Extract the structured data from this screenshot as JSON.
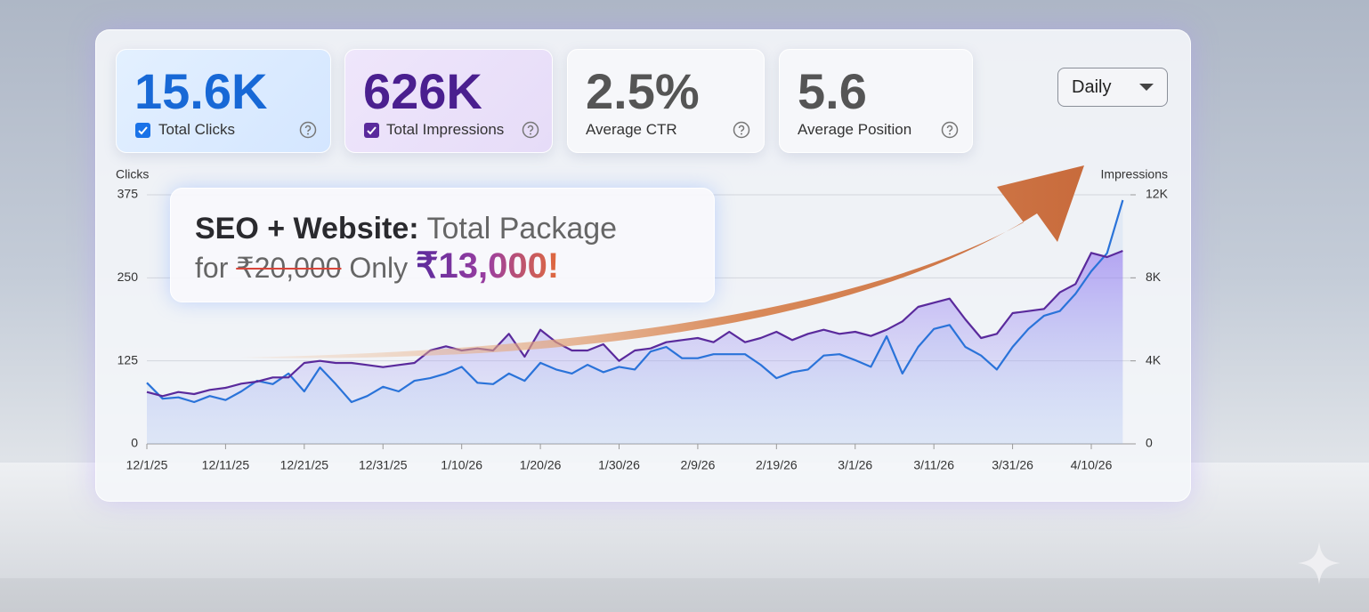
{
  "cards": [
    {
      "value": "15.6K",
      "label": "Total Clicks"
    },
    {
      "value": "626K",
      "label": "Total Impressions"
    },
    {
      "value": "2.5%",
      "label": "Average CTR"
    },
    {
      "value": "5.6",
      "label": "Average Position"
    }
  ],
  "dropdown": "Daily",
  "promo": {
    "headline": "SEO + Website:",
    "headline_rest": "Total Package",
    "prefix": "for",
    "old_price": "₹20,000",
    "middle": "Only",
    "new_price": "₹13,000!"
  },
  "chart_data": {
    "type": "line",
    "categories": [
      "12/1/25",
      null,
      null,
      null,
      null,
      "12/11/25",
      null,
      null,
      null,
      null,
      "12/21/25",
      null,
      null,
      null,
      null,
      "12/31/25",
      null,
      null,
      null,
      null,
      "1/10/26",
      null,
      null,
      null,
      null,
      "1/20/26",
      null,
      null,
      null,
      null,
      "1/30/26",
      null,
      null,
      null,
      null,
      "2/9/26",
      null,
      null,
      null,
      null,
      "2/19/26",
      null,
      null,
      null,
      null,
      "3/1/26",
      null,
      null,
      null,
      null,
      "3/11/26",
      null,
      null,
      null,
      null,
      "3/31/26",
      null,
      null,
      null,
      null,
      "4/10/26",
      null,
      null
    ],
    "y_label": "Clicks",
    "y2_label": "Impressions",
    "ylim": [
      0,
      375
    ],
    "yticks": [
      0,
      125,
      250,
      375
    ],
    "y2lim": [
      0,
      12000
    ],
    "y2ticks": [
      0,
      {
        "value": 4000,
        "label": "4K"
      },
      {
        "value": 8000,
        "label": "8K"
      },
      {
        "value": 12000,
        "label": "12K"
      }
    ],
    "grid": true,
    "series": [
      {
        "name": "Total Clicks",
        "color": "#2a73d9",
        "values": [
          92,
          68,
          70,
          63,
          72,
          66,
          79,
          95,
          90,
          106,
          79,
          115,
          90,
          63,
          72,
          86,
          79,
          95,
          99,
          106,
          116,
          92,
          90,
          106,
          95,
          122,
          112,
          106,
          119,
          108,
          116,
          112,
          139,
          146,
          129,
          129,
          135,
          135,
          135,
          119,
          99,
          108,
          112,
          133,
          135,
          126,
          116,
          162,
          106,
          146,
          173,
          179,
          146,
          133,
          112,
          146,
          173,
          193,
          200,
          226,
          260,
          287,
          367
        ]
      },
      {
        "name": "Total Impressions",
        "color": "#5a2a9c",
        "axis": "y2",
        "values": [
          2500,
          2300,
          2500,
          2400,
          2600,
          2700,
          2900,
          3000,
          3200,
          3200,
          3900,
          4000,
          3900,
          3900,
          3800,
          3700,
          3800,
          3900,
          4500,
          4700,
          4500,
          4600,
          4500,
          5300,
          4200,
          5500,
          4900,
          4500,
          4500,
          4800,
          4000,
          4500,
          4600,
          4900,
          5000,
          5100,
          4900,
          5400,
          4900,
          5100,
          5400,
          5000,
          5300,
          5500,
          5300,
          5400,
          5200,
          5500,
          5900,
          6600,
          6800,
          7000,
          6000,
          5100,
          5300,
          6300,
          6400,
          6500,
          7300,
          7700,
          9200,
          9000,
          9300
        ]
      }
    ]
  }
}
